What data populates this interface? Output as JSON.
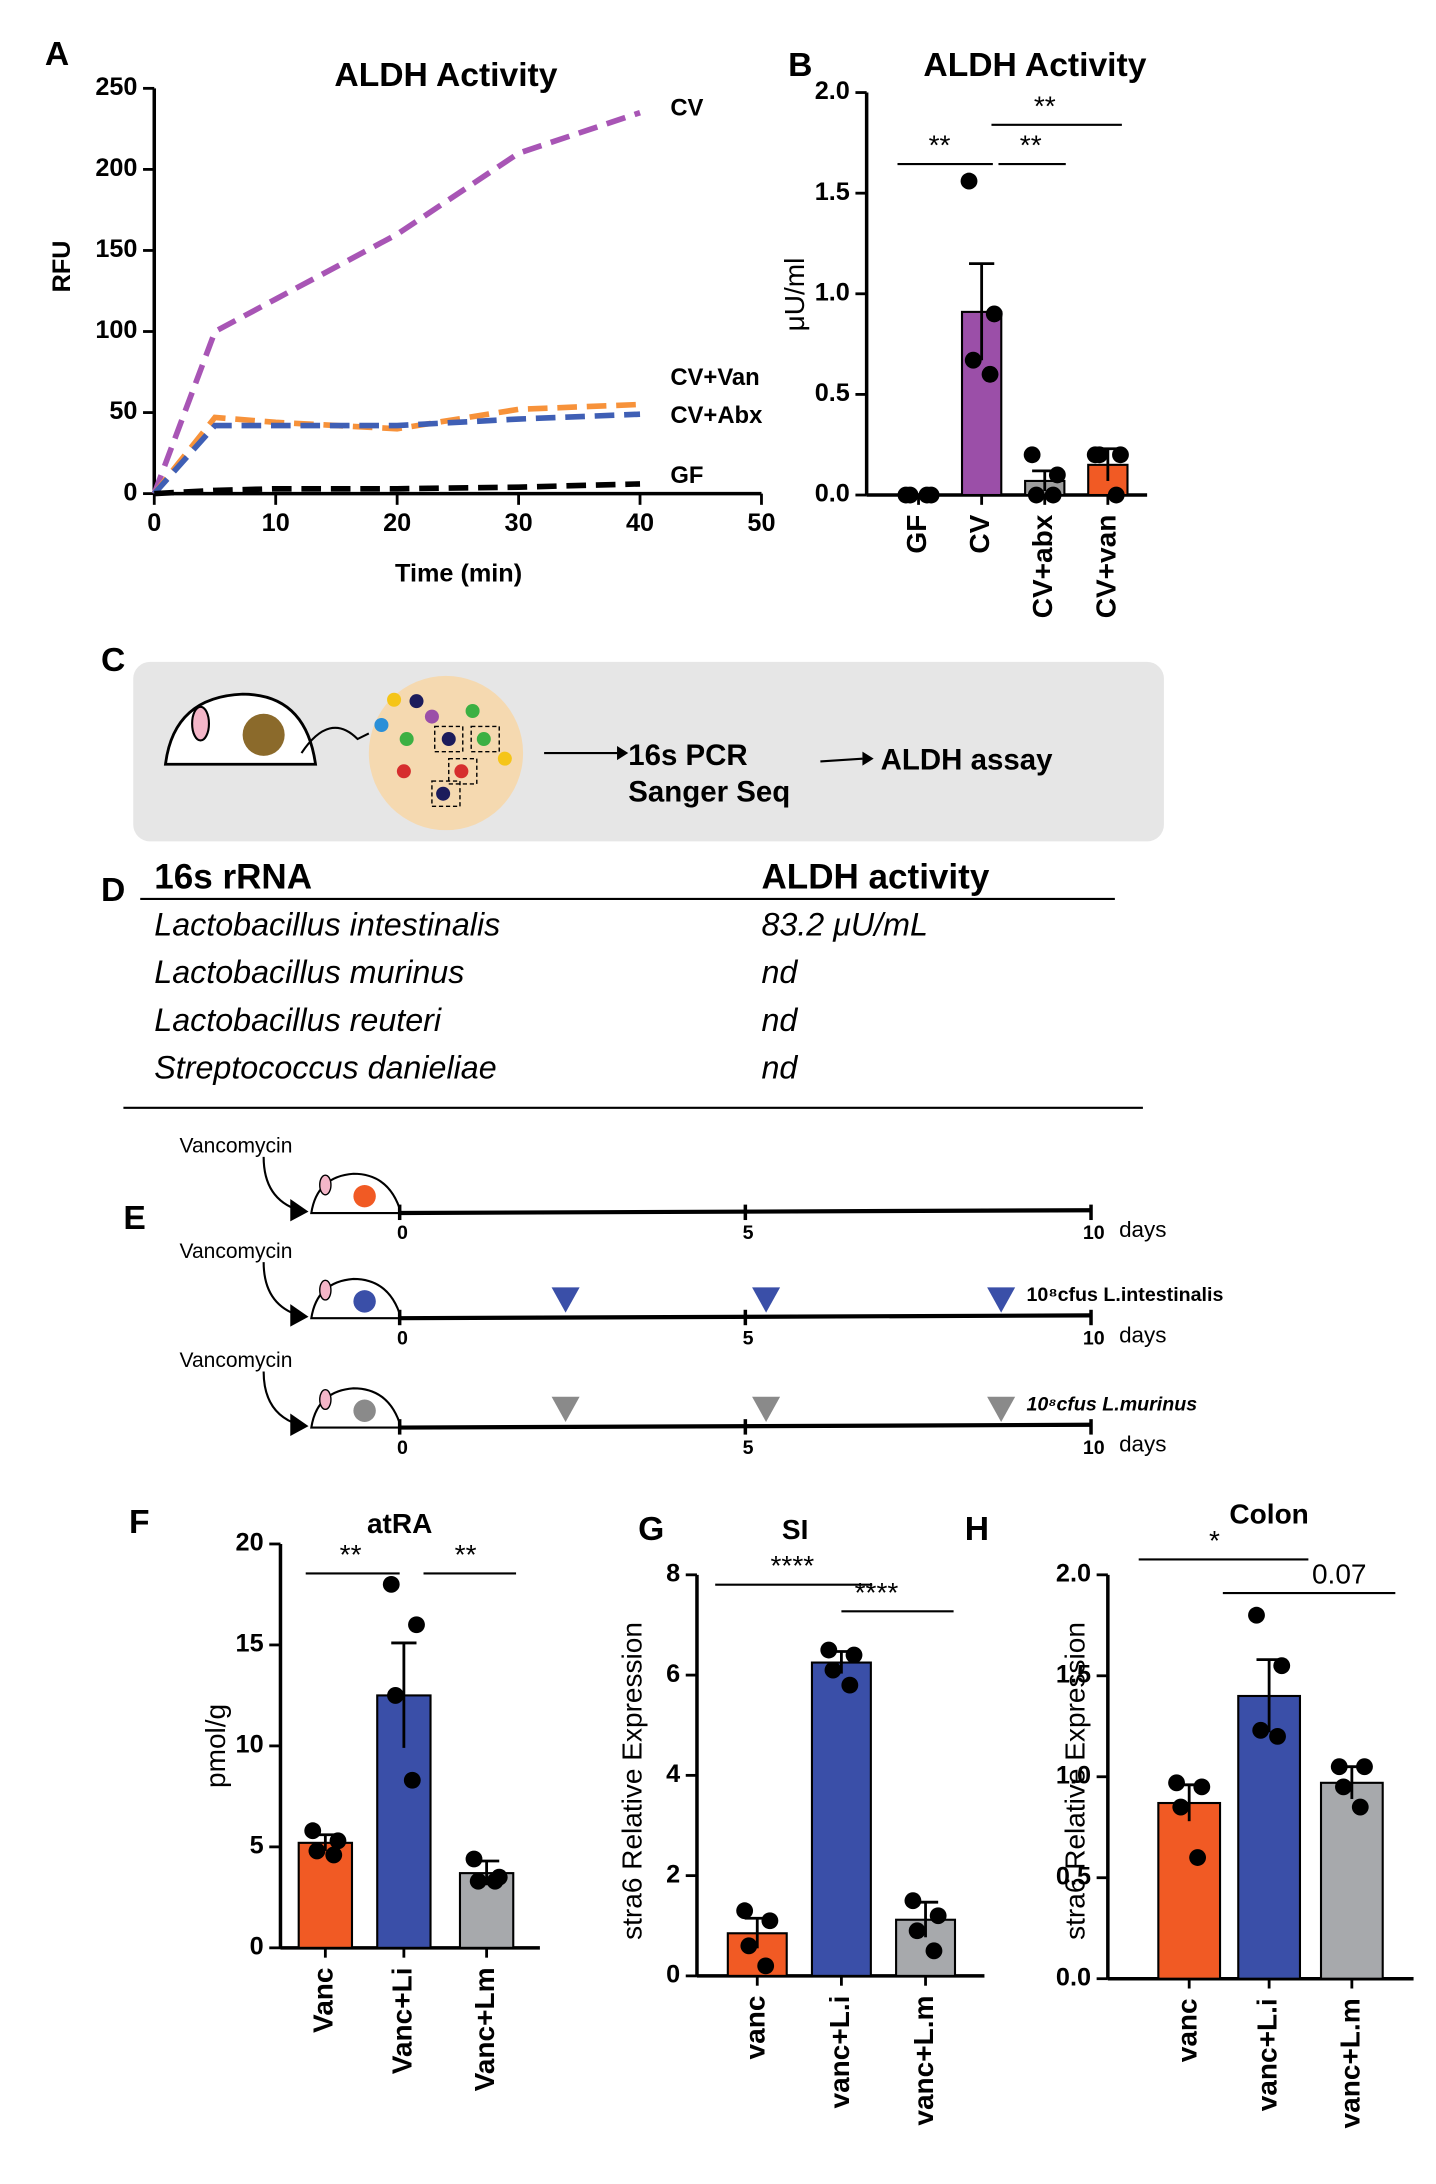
{
  "panel_labels": [
    "A",
    "B",
    "C",
    "D",
    "E",
    "F",
    "G",
    "H"
  ],
  "chart_data": [
    {
      "type": "line",
      "title": "ALDH Activity",
      "x_label": "Time (min)",
      "y_label": "RFU",
      "x": [
        0,
        5,
        10,
        20,
        30,
        40
      ],
      "series": [
        {
          "name": "CV",
          "color": "#a855b5",
          "values": [
            0,
            100,
            120,
            160,
            210,
            235
          ]
        },
        {
          "name": "CV+Van",
          "color": "#f7923a",
          "values": [
            0,
            47,
            44,
            40,
            52,
            55
          ]
        },
        {
          "name": "CV+Abx",
          "color": "#3f5fb5",
          "values": [
            0,
            42,
            42,
            42,
            46,
            49
          ]
        },
        {
          "name": "GF",
          "color": "#000000",
          "values": [
            0,
            2,
            3,
            3,
            4,
            6
          ]
        }
      ],
      "xlim": [
        0,
        50
      ],
      "xticks": [
        0,
        10,
        20,
        30,
        40,
        50
      ],
      "ylim": [
        0,
        250
      ],
      "yticks": [
        0,
        50,
        100,
        150,
        200,
        250
      ]
    },
    {
      "type": "bar",
      "title": "ALDH Activity",
      "y_label": "μU/ml",
      "categories": [
        "GF",
        "CV",
        "CV+abx",
        "CV+van"
      ],
      "colors": [
        "#000000",
        "#9b4fa8",
        "#9e9e9e",
        "#f15a24"
      ],
      "values": [
        0,
        0.91,
        0.07,
        0.15
      ],
      "errors": [
        0,
        0.24,
        0.05,
        0.08
      ],
      "points": [
        [
          0,
          0,
          0,
          0
        ],
        [
          1.56,
          0.9,
          0.67,
          0.6
        ],
        [
          0.2,
          0.1,
          0,
          0
        ],
        [
          0.2,
          0.2,
          0.2,
          0
        ]
      ],
      "ylim": [
        0,
        2
      ],
      "yticks": [
        {
          "value": 0,
          "label": "0.0"
        },
        {
          "value": 0.5,
          "label": "0.5"
        },
        {
          "value": 1,
          "label": "1.0"
        },
        {
          "value": 1.5,
          "label": "1.5"
        },
        {
          "value": 2,
          "label": "2.0"
        }
      ],
      "significance": [
        "**",
        "**",
        "**"
      ]
    },
    {
      "type": "bar",
      "title": "atRA",
      "y_label": "pmol/g",
      "categories": [
        "Vanc",
        "Vanc+Li",
        "Vanc+Lm"
      ],
      "colors": [
        "#f15a24",
        "#3a4fa8",
        "#a7a9ac"
      ],
      "values": [
        5.2,
        12.5,
        3.7
      ],
      "errors": [
        0.4,
        2.6,
        0.6
      ],
      "points": [
        [
          5.8,
          5.3,
          4.8,
          4.6
        ],
        [
          18,
          16,
          12.5,
          8.3
        ],
        [
          4.4,
          3.5,
          3.3,
          3.3
        ]
      ],
      "ylim": [
        0,
        20
      ],
      "yticks": [
        0,
        5,
        10,
        15,
        20
      ],
      "significance": [
        "**",
        "**"
      ]
    },
    {
      "type": "bar",
      "title": "SI",
      "y_label": "stra6 Relative Expression",
      "categories": [
        "vanc",
        "vanc+L.i",
        "vanc+L.m"
      ],
      "colors": [
        "#f15a24",
        "#3a4fa8",
        "#a7a9ac"
      ],
      "values": [
        0.85,
        6.25,
        1.12
      ],
      "errors": [
        0.3,
        0.22,
        0.35
      ],
      "points": [
        [
          1.3,
          1.1,
          0.6,
          0.2
        ],
        [
          6.5,
          6.4,
          6.1,
          5.8
        ],
        [
          1.5,
          1.2,
          0.9,
          0.5
        ]
      ],
      "ylim": [
        0,
        8
      ],
      "yticks": [
        0,
        2,
        4,
        6,
        8
      ],
      "significance": [
        "****",
        "****"
      ]
    },
    {
      "type": "bar",
      "title": "Colon",
      "y_label": "stra6 Relative Expression",
      "categories": [
        "vanc",
        "vanc+L.i",
        "vanc+L.m"
      ],
      "colors": [
        "#f15a24",
        "#3a4fa8",
        "#a7a9ac"
      ],
      "values": [
        0.87,
        1.4,
        0.97
      ],
      "errors": [
        0.09,
        0.18,
        0.08
      ],
      "points": [
        [
          0.97,
          0.95,
          0.85,
          0.6
        ],
        [
          1.8,
          1.55,
          1.23,
          1.2
        ],
        [
          1.05,
          1.05,
          0.95,
          0.85
        ]
      ],
      "ylim": [
        0,
        2
      ],
      "yticks": [
        {
          "value": 0,
          "label": "0.0"
        },
        {
          "value": 0.5,
          "label": "0.5"
        },
        {
          "value": 1,
          "label": "1.0"
        },
        {
          "value": 1.5,
          "label": "1.5"
        },
        {
          "value": 2,
          "label": "2.0"
        }
      ],
      "significance": [
        "*",
        "0.07"
      ]
    }
  ],
  "diagram": {
    "steps": [
      "16s PCR",
      "Sanger Seq",
      "ALDH assay"
    ]
  },
  "table": {
    "header": [
      "16s rRNA",
      "ALDH activity"
    ],
    "rows": [
      [
        "Lactobacillus intestinalis",
        "83.2 μU/mL"
      ],
      [
        "Lactobacillus murinus",
        "nd"
      ],
      [
        "Lactobacillus reuteri",
        "nd"
      ],
      [
        "Streptococcus danieliae",
        "nd"
      ]
    ]
  },
  "timeline": {
    "ticks": [
      0,
      5,
      10
    ],
    "unit": "days",
    "rows": [
      {
        "treatment": "Vancomycin",
        "color": "#f15a24"
      },
      {
        "treatment": "Vancomycin",
        "color": "#3a4fa8",
        "dose_label": "10⁸cfus L.intestinalis",
        "dose_days": [
          2.4,
          5.3,
          8.7
        ]
      },
      {
        "treatment": "Vancomycin",
        "color": "#8a8a8a",
        "dose_label": "10⁸cfus L.murinus",
        "dose_days": [
          2.4,
          5.3,
          8.7
        ]
      }
    ]
  }
}
